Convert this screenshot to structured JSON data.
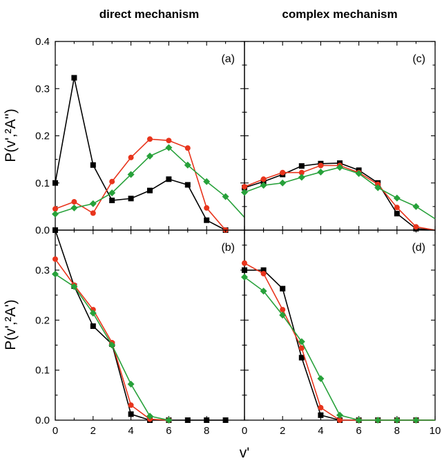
{
  "figure": {
    "col_titles": [
      "direct mechanism",
      "complex mechanism"
    ],
    "xlabel": "v'",
    "ylabels": [
      "P(v',²A'')",
      "P(v',²A')"
    ]
  },
  "colors": {
    "black": "#000000",
    "red": "#e8341c",
    "green": "#27a13a"
  },
  "chart_data": [
    {
      "type": "line",
      "panel": "(a)",
      "xlim": [
        0,
        10
      ],
      "ylim": [
        0,
        0.4
      ],
      "series": [
        {
          "color": "black",
          "marker": "square",
          "x": [
            0,
            1,
            2,
            3,
            4,
            5,
            6,
            7,
            8,
            9
          ],
          "values": [
            0.1,
            0.323,
            0.138,
            0.063,
            0.067,
            0.084,
            0.108,
            0.096,
            0.021,
            0.0
          ]
        },
        {
          "color": "red",
          "marker": "circle",
          "x": [
            0,
            1,
            2,
            3,
            4,
            5,
            6,
            7,
            8,
            9
          ],
          "values": [
            0.045,
            0.06,
            0.036,
            0.103,
            0.154,
            0.193,
            0.19,
            0.174,
            0.047,
            0.0
          ]
        },
        {
          "color": "green",
          "marker": "diamond",
          "x": [
            0,
            1,
            2,
            3,
            4,
            5,
            6,
            7,
            8,
            9,
            10
          ],
          "values": [
            0.034,
            0.047,
            0.056,
            0.079,
            0.118,
            0.157,
            0.175,
            0.138,
            0.103,
            0.071,
            0.027
          ]
        }
      ]
    },
    {
      "type": "line",
      "panel": "(b)",
      "xlim": [
        0,
        10
      ],
      "ylim": [
        0,
        0.38
      ],
      "series": [
        {
          "color": "black",
          "marker": "square",
          "x": [
            0,
            1,
            2,
            3,
            4,
            5,
            6,
            7,
            8,
            9
          ],
          "values": [
            0.38,
            0.268,
            0.188,
            0.152,
            0.012,
            0.0,
            0.0,
            0.0,
            0.0,
            0.0
          ]
        },
        {
          "color": "red",
          "marker": "circle",
          "x": [
            0,
            1,
            2,
            3,
            4,
            5,
            6
          ],
          "values": [
            0.322,
            0.27,
            0.221,
            0.155,
            0.03,
            0.002,
            0.0
          ]
        },
        {
          "color": "green",
          "marker": "diamond",
          "x": [
            0,
            1,
            2,
            3,
            4,
            5,
            6
          ],
          "values": [
            0.292,
            0.267,
            0.214,
            0.15,
            0.072,
            0.008,
            0.0
          ]
        }
      ]
    },
    {
      "type": "line",
      "panel": "(c)",
      "xlim": [
        0,
        10
      ],
      "ylim": [
        0,
        0.4
      ],
      "series": [
        {
          "color": "black",
          "marker": "square",
          "x": [
            0,
            1,
            2,
            3,
            4,
            5,
            6,
            7,
            8,
            9,
            10
          ],
          "values": [
            0.09,
            0.103,
            0.118,
            0.136,
            0.141,
            0.142,
            0.127,
            0.1,
            0.035,
            0.003,
            0.0
          ]
        },
        {
          "color": "red",
          "marker": "circle",
          "x": [
            0,
            1,
            2,
            3,
            4,
            5,
            6,
            7,
            8,
            9,
            10
          ],
          "values": [
            0.092,
            0.108,
            0.122,
            0.122,
            0.137,
            0.137,
            0.122,
            0.097,
            0.048,
            0.007,
            0.0
          ]
        },
        {
          "color": "green",
          "marker": "diamond",
          "x": [
            0,
            1,
            2,
            3,
            4,
            5,
            6,
            7,
            8,
            9,
            10
          ],
          "values": [
            0.08,
            0.095,
            0.1,
            0.112,
            0.123,
            0.133,
            0.12,
            0.09,
            0.068,
            0.05,
            0.024
          ]
        }
      ]
    },
    {
      "type": "line",
      "panel": "(d)",
      "xlim": [
        0,
        10
      ],
      "ylim": [
        0,
        0.38
      ],
      "series": [
        {
          "color": "black",
          "marker": "square",
          "x": [
            0,
            1,
            2,
            3,
            4,
            5,
            6,
            7,
            8,
            9,
            10
          ],
          "values": [
            0.3,
            0.3,
            0.263,
            0.125,
            0.01,
            0.0,
            0.0,
            0.0,
            0.0,
            0.0,
            0.0
          ]
        },
        {
          "color": "red",
          "marker": "circle",
          "x": [
            0,
            1,
            2,
            3,
            4,
            5,
            6,
            7,
            8,
            9,
            10
          ],
          "values": [
            0.314,
            0.293,
            0.221,
            0.144,
            0.025,
            0.0,
            0.0,
            0.0,
            0.0,
            0.0,
            0.0
          ]
        },
        {
          "color": "green",
          "marker": "diamond",
          "x": [
            0,
            1,
            2,
            3,
            4,
            5,
            6,
            7,
            8,
            9,
            10
          ],
          "values": [
            0.286,
            0.258,
            0.21,
            0.157,
            0.083,
            0.01,
            0.0,
            0.0,
            0.0,
            0.0,
            0.0
          ]
        }
      ]
    }
  ],
  "axes": {
    "x_ticks": [
      "0",
      "2",
      "4",
      "6",
      "8",
      "10"
    ],
    "top_y_ticks": [
      "0.0",
      "0.1",
      "0.2",
      "0.3",
      "0.4"
    ],
    "bottom_y_ticks": [
      "0.0",
      "0.1",
      "0.2",
      "0.3"
    ]
  }
}
